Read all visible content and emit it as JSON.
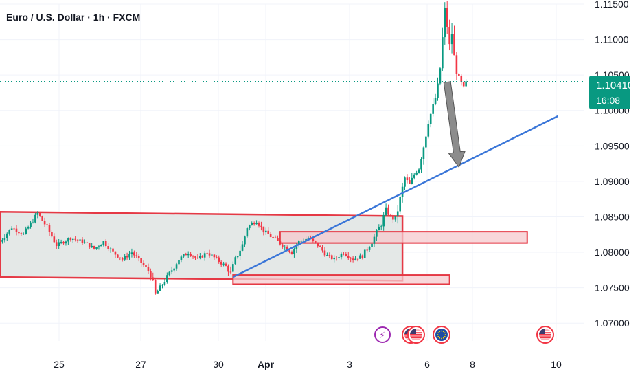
{
  "header": {
    "title": "Euro / U.S. Dollar · 1h · FXCM"
  },
  "price_label": {
    "price": "1.10410",
    "countdown": "16:08",
    "color": "#089981"
  },
  "colors": {
    "up": "#089981",
    "down": "#f23645",
    "zone_border": "#e53945",
    "zone_fill": "#dfe4e3",
    "demand_fill": "#f6c9cd",
    "trendline": "#3a76d8",
    "arrow": "#8c8c8c"
  },
  "events": [
    {
      "name": "flash-event-icon",
      "glyph": "⚡"
    },
    {
      "name": "us-flag-event-icon",
      "glyph": "US"
    },
    {
      "name": "us-flag-event-icon",
      "glyph": "US"
    },
    {
      "name": "eu-flag-event-icon",
      "glyph": "EU"
    },
    {
      "name": "us-flag-event-icon",
      "glyph": "US"
    }
  ],
  "chart_data": {
    "type": "candlestick",
    "title": "Euro / U.S. Dollar · 1h · FXCM",
    "ylim": [
      1.0675,
      1.115
    ],
    "y_ticks": [
      "1.11500",
      "1.11000",
      "1.10500",
      "1.10000",
      "1.09500",
      "1.09000",
      "1.08500",
      "1.08000",
      "1.07500",
      "1.07000"
    ],
    "x_ticks": [
      {
        "label": "25",
        "bold": false
      },
      {
        "label": "27",
        "bold": false
      },
      {
        "label": "30",
        "bold": false
      },
      {
        "label": "Apr",
        "bold": true
      },
      {
        "label": "3",
        "bold": false
      },
      {
        "label": "6",
        "bold": false
      },
      {
        "label": "8",
        "bold": false
      },
      {
        "label": "10",
        "bold": false
      }
    ],
    "last_price": 1.1041,
    "path": [
      [
        0,
        1.0815
      ],
      [
        5,
        1.0835
      ],
      [
        10,
        1.0825
      ],
      [
        14,
        1.0845
      ],
      [
        16,
        1.0855
      ],
      [
        20,
        1.0835
      ],
      [
        24,
        1.081
      ],
      [
        30,
        1.082
      ],
      [
        35,
        1.0815
      ],
      [
        40,
        1.0805
      ],
      [
        44,
        1.0815
      ],
      [
        48,
        1.08
      ],
      [
        52,
        1.079
      ],
      [
        56,
        1.08
      ],
      [
        60,
        1.0785
      ],
      [
        64,
        1.077
      ],
      [
        66,
        1.074
      ],
      [
        68,
        1.075
      ],
      [
        72,
        1.077
      ],
      [
        76,
        1.079
      ],
      [
        80,
        1.08
      ],
      [
        84,
        1.079
      ],
      [
        88,
        1.08
      ],
      [
        92,
        1.079
      ],
      [
        96,
        1.078
      ],
      [
        98,
        1.077
      ],
      [
        100,
        1.079
      ],
      [
        103,
        1.081
      ],
      [
        105,
        1.0835
      ],
      [
        109,
        1.0845
      ],
      [
        112,
        1.083
      ],
      [
        116,
        1.082
      ],
      [
        120,
        1.081
      ],
      [
        124,
        1.08
      ],
      [
        127,
        1.0815
      ],
      [
        131,
        1.082
      ],
      [
        135,
        1.081
      ],
      [
        139,
        1.0795
      ],
      [
        142,
        1.079
      ],
      [
        146,
        1.08
      ],
      [
        150,
        1.079
      ],
      [
        154,
        1.0795
      ],
      [
        158,
        1.0815
      ],
      [
        162,
        1.084
      ],
      [
        164,
        1.086
      ],
      [
        166,
        1.085
      ],
      [
        168,
        1.0845
      ],
      [
        170,
        1.0875
      ],
      [
        172,
        1.0905
      ],
      [
        174,
        1.0895
      ],
      [
        176,
        1.091
      ],
      [
        178,
        1.092
      ],
      [
        180,
        1.095
      ],
      [
        182,
        1.0985
      ],
      [
        184,
        1.1005
      ],
      [
        186,
        1.103
      ],
      [
        187,
        1.106
      ],
      [
        188,
        1.11
      ],
      [
        189,
        1.114
      ],
      [
        190,
        1.112
      ],
      [
        191,
        1.109
      ],
      [
        192,
        1.111
      ],
      [
        193,
        1.1075
      ],
      [
        194,
        1.1055
      ],
      [
        195,
        1.1045
      ],
      [
        197,
        1.103
      ],
      [
        198,
        1.1041
      ]
    ],
    "zones": [
      {
        "name": "consolidation-range",
        "x0": 0,
        "x1": 171,
        "y0": 1.0857,
        "y1": 1.0765,
        "top_right": 1.0851,
        "bottom_right": 1.076,
        "filled": true
      },
      {
        "name": "upper-demand-zone",
        "x0": 119,
        "x1": 224,
        "y0": 1.0829,
        "y1": 1.0813,
        "filled": false
      },
      {
        "name": "lower-demand-zone",
        "x0": 99,
        "x1": 191,
        "y0": 1.0768,
        "y1": 1.0755,
        "filled": false
      }
    ],
    "trendline": {
      "x0": 99,
      "y0": 1.0765,
      "x1": 237,
      "y1": 1.0992
    },
    "projection_arrow": {
      "x0": 190,
      "y0": 1.104,
      "x1": 195,
      "y1": 1.092
    }
  }
}
